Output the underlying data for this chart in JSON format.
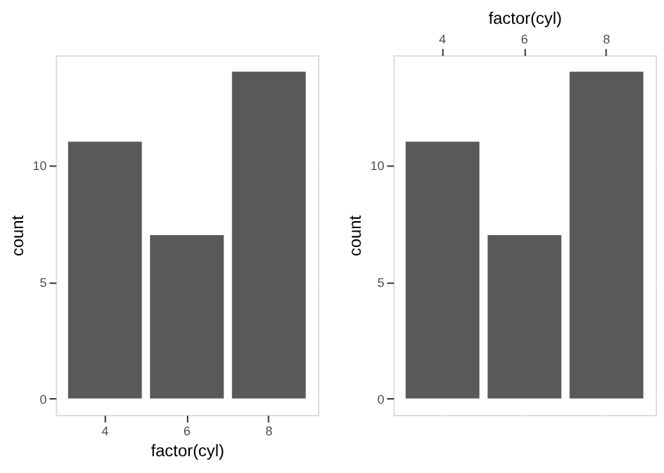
{
  "chart_data": [
    {
      "type": "bar",
      "categories": [
        "4",
        "6",
        "8"
      ],
      "values": [
        11,
        7,
        14
      ],
      "color": "#595959",
      "xlabel": "factor(cyl)",
      "ylabel": "count",
      "ylim": [
        -0.7,
        14.7
      ],
      "yticks": [
        0,
        5,
        10
      ],
      "grid": true
    },
    {
      "type": "bar",
      "categories": [
        "4",
        "6",
        "8"
      ],
      "values": [
        11,
        7,
        14
      ],
      "color": "#595959",
      "x2label": "factor(cyl)",
      "ylabel": "count",
      "ylim": [
        -0.7,
        14.7
      ],
      "yticks": [
        0,
        5,
        10
      ],
      "grid": true
    }
  ]
}
